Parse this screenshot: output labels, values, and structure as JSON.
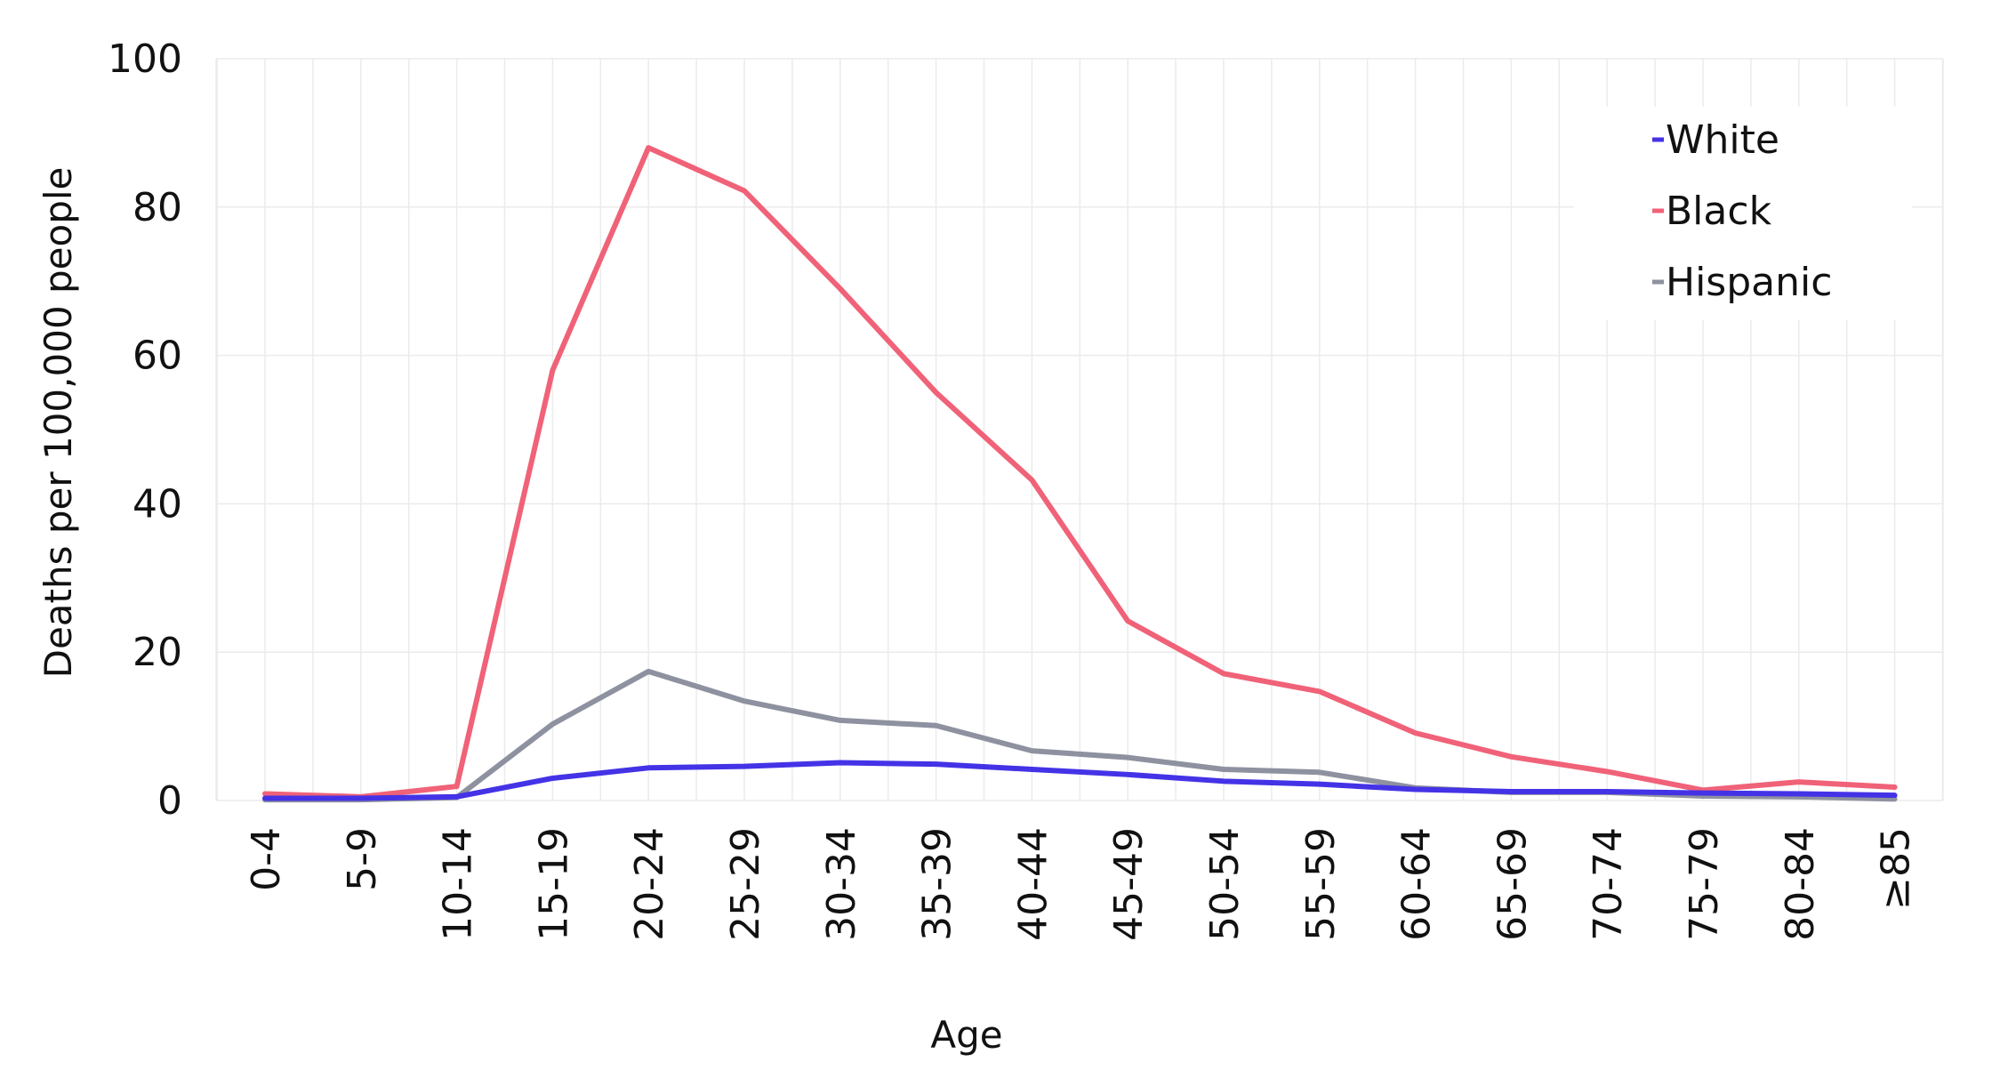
{
  "chart_data": {
    "type": "line",
    "title": "",
    "xlabel": "Age",
    "ylabel": "Deaths per 100,000 people",
    "categories": [
      "0-4",
      "5-9",
      "10-14",
      "15-19",
      "20-24",
      "25-29",
      "30-34",
      "35-39",
      "40-44",
      "45-49",
      "50-54",
      "55-59",
      "60-64",
      "65-69",
      "70-74",
      "75-79",
      "80-84",
      "≥85"
    ],
    "ylim": [
      0,
      100
    ],
    "yticks": [
      "0",
      "20",
      "40",
      "60",
      "80",
      "100"
    ],
    "grid": true,
    "legend_position": "top-right",
    "series": [
      {
        "name": "White",
        "color": "#4433e6",
        "values": [
          0.3,
          0.3,
          0.5,
          3.0,
          4.4,
          4.6,
          5.1,
          4.9,
          4.2,
          3.5,
          2.6,
          2.2,
          1.5,
          1.2,
          1.2,
          1.0,
          0.9,
          0.7
        ]
      },
      {
        "name": "Black",
        "color": "#f06278",
        "values": [
          0.9,
          0.5,
          1.9,
          58,
          88,
          82.2,
          69,
          55,
          43.2,
          24.2,
          17.1,
          14.7,
          9.1,
          5.9,
          3.9,
          1.4,
          2.5,
          1.8
        ]
      },
      {
        "name": "Hispanic",
        "color": "#8e919f",
        "values": [
          0.1,
          0.1,
          0.4,
          10.3,
          17.4,
          13.4,
          10.8,
          10.1,
          6.7,
          5.8,
          4.2,
          3.8,
          1.7,
          1.1,
          1.1,
          0.6,
          0.5,
          0.2
        ]
      }
    ]
  }
}
